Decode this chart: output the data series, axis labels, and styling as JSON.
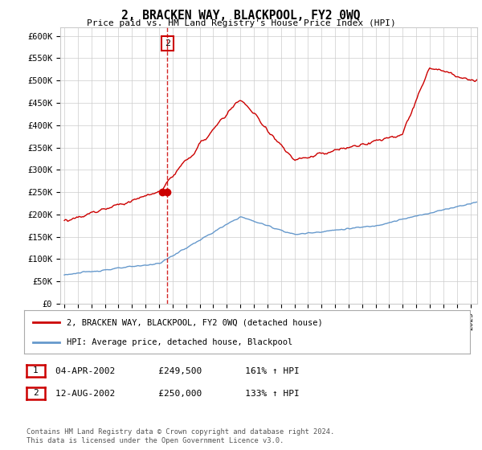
{
  "title": "2, BRACKEN WAY, BLACKPOOL, FY2 0WQ",
  "subtitle": "Price paid vs. HM Land Registry's House Price Index (HPI)",
  "ylabel_ticks": [
    "£0",
    "£50K",
    "£100K",
    "£150K",
    "£200K",
    "£250K",
    "£300K",
    "£350K",
    "£400K",
    "£450K",
    "£500K",
    "£550K",
    "£600K"
  ],
  "ytick_vals": [
    0,
    50000,
    100000,
    150000,
    200000,
    250000,
    300000,
    350000,
    400000,
    450000,
    500000,
    550000,
    600000
  ],
  "ylim": [
    0,
    620000
  ],
  "xlim_start": 1994.7,
  "xlim_end": 2025.5,
  "hpi_color": "#6699cc",
  "price_color": "#cc0000",
  "sale1_x": 2002.25,
  "sale1_y": 249500,
  "sale2_x": 2002.62,
  "sale2_y": 250000,
  "legend_label_red": "2, BRACKEN WAY, BLACKPOOL, FY2 0WQ (detached house)",
  "legend_label_blue": "HPI: Average price, detached house, Blackpool",
  "table_rows": [
    {
      "num": "1",
      "date": "04-APR-2002",
      "price": "£249,500",
      "hpi": "161% ↑ HPI"
    },
    {
      "num": "2",
      "date": "12-AUG-2002",
      "price": "£250,000",
      "hpi": "133% ↑ HPI"
    }
  ],
  "footer": "Contains HM Land Registry data © Crown copyright and database right 2024.\nThis data is licensed under the Open Government Licence v3.0.",
  "vline_x": 2002.62,
  "background_color": "#ffffff",
  "grid_color": "#cccccc"
}
